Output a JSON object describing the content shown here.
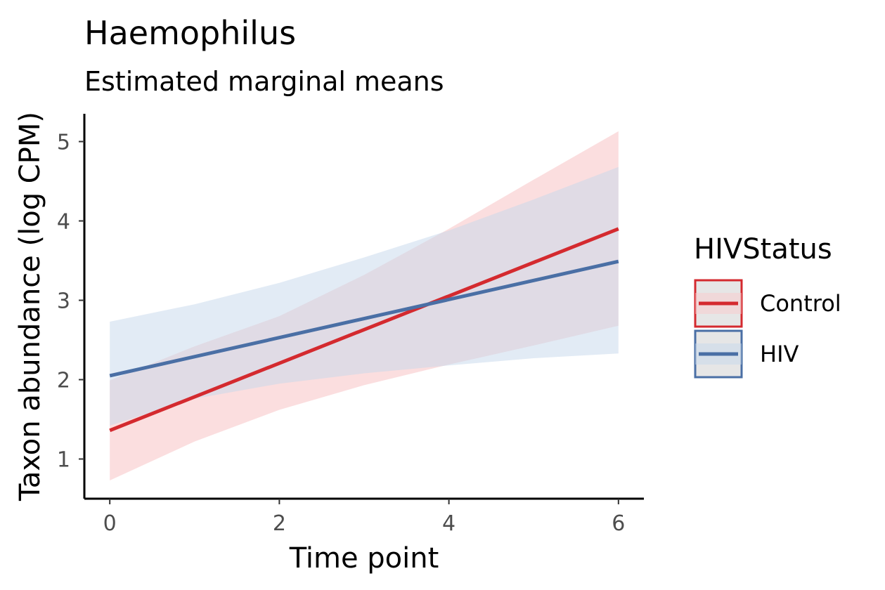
{
  "chart_data": {
    "type": "line",
    "title": "Haemophilus",
    "subtitle": "Estimated marginal means",
    "xlabel": "Time point",
    "ylabel": "Taxon abundance (log CPM)",
    "xlim": [
      -0.3,
      6.3
    ],
    "ylim": [
      0.5,
      5.35
    ],
    "x_ticks": [
      0,
      2,
      4,
      6
    ],
    "y_ticks": [
      1,
      2,
      3,
      4,
      5
    ],
    "grid": false,
    "legend": {
      "title": "HIVStatus",
      "position": "right"
    },
    "series": [
      {
        "name": "Control",
        "color": "#D42A2F",
        "fill_color": "#F9C9CB",
        "x": [
          0,
          6
        ],
        "y": [
          1.36,
          3.9
        ],
        "band_x": [
          0,
          1,
          2,
          3,
          4,
          5,
          6
        ],
        "band_lower": [
          0.73,
          1.22,
          1.62,
          1.93,
          2.19,
          2.43,
          2.68
        ],
        "band_upper": [
          1.99,
          2.42,
          2.8,
          3.32,
          3.9,
          4.52,
          5.13
        ]
      },
      {
        "name": "HIV",
        "color": "#4A6FA5",
        "fill_color": "#C6D8EB",
        "x": [
          0,
          6
        ],
        "y": [
          2.05,
          3.49
        ],
        "band_x": [
          0,
          1,
          2,
          3,
          4,
          5,
          6
        ],
        "band_lower": [
          1.42,
          1.76,
          1.95,
          2.08,
          2.18,
          2.27,
          2.33
        ],
        "band_upper": [
          2.73,
          2.95,
          3.22,
          3.54,
          3.88,
          4.27,
          4.68
        ]
      }
    ]
  }
}
